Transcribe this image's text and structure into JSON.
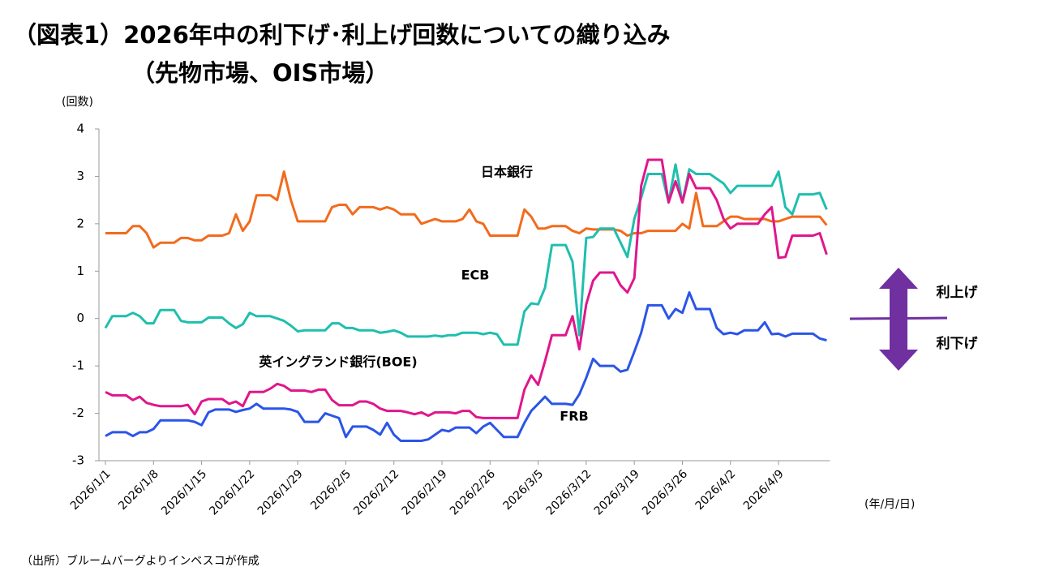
{
  "chart_data": {
    "type": "line",
    "title": "（図表1）2026年中の利下げ･利上げ回数についての織り込み",
    "subtitle": "（先物市場、OIS市場）",
    "y_label": "(回数)",
    "x_label": "(年/月/日)",
    "source": "（出所）ブルームバーグよりインベスコが作成",
    "annotations": [
      "利上げ",
      "利下げ"
    ],
    "annotation_color": "#7030a0",
    "negative_tick_color": "#e00000",
    "ylim": [
      -3,
      4
    ],
    "yticks": [
      4,
      3,
      2,
      1,
      0,
      -1,
      -2,
      -3
    ],
    "x": [
      "2026/1/1",
      "2026/1/2",
      "2026/1/3",
      "2026/1/4",
      "2026/1/5",
      "2026/1/6",
      "2026/1/7",
      "2026/1/8",
      "2026/1/9",
      "2026/1/10",
      "2026/1/11",
      "2026/1/12",
      "2026/1/13",
      "2026/1/14",
      "2026/1/15",
      "2026/1/16",
      "2026/1/17",
      "2026/1/18",
      "2026/1/19",
      "2026/1/20",
      "2026/1/21",
      "2026/1/22",
      "2026/1/23",
      "2026/1/24",
      "2026/1/25",
      "2026/1/26",
      "2026/1/27",
      "2026/1/28",
      "2026/1/29",
      "2026/1/30",
      "2026/1/31",
      "2026/2/1",
      "2026/2/2",
      "2026/2/3",
      "2026/2/4",
      "2026/2/5",
      "2026/2/6",
      "2026/2/7",
      "2026/2/8",
      "2026/2/9",
      "2026/2/10",
      "2026/2/11",
      "2026/2/12",
      "2026/2/13",
      "2026/2/14",
      "2026/2/15",
      "2026/2/16",
      "2026/2/17",
      "2026/2/18",
      "2026/2/19",
      "2026/2/20",
      "2026/2/21",
      "2026/2/22",
      "2026/2/23",
      "2026/2/24",
      "2026/2/25",
      "2026/2/26",
      "2026/2/27",
      "2026/2/28",
      "2026/3/1",
      "2026/3/2",
      "2026/3/3",
      "2026/3/4",
      "2026/3/5",
      "2026/3/6",
      "2026/3/7",
      "2026/3/8",
      "2026/3/9",
      "2026/3/10",
      "2026/3/11",
      "2026/3/12",
      "2026/3/13",
      "2026/3/14",
      "2026/3/15",
      "2026/3/16",
      "2026/3/17",
      "2026/3/18",
      "2026/3/19",
      "2026/3/20",
      "2026/3/21",
      "2026/3/22",
      "2026/3/23",
      "2026/3/24",
      "2026/3/25",
      "2026/3/26",
      "2026/3/27",
      "2026/3/28",
      "2026/3/29",
      "2026/3/30",
      "2026/3/31",
      "2026/4/1",
      "2026/4/2",
      "2026/4/3",
      "2026/4/4",
      "2026/4/5",
      "2026/4/6",
      "2026/4/7",
      "2026/4/8",
      "2026/4/9",
      "2026/4/10",
      "2026/4/11",
      "2026/4/12",
      "2026/4/13",
      "2026/4/14",
      "2026/4/15",
      "2026/4/16"
    ],
    "xticks": [
      "2026/1/1",
      "2026/1/8",
      "2026/1/15",
      "2026/1/22",
      "2026/1/29",
      "2026/2/5",
      "2026/2/12",
      "2026/2/19",
      "2026/2/26",
      "2026/3/5",
      "2026/3/12",
      "2026/3/19",
      "2026/3/26",
      "2026/4/2",
      "2026/4/9"
    ],
    "series": [
      {
        "name": "日本銀行",
        "color": "#f26b1d",
        "values": [
          1.8,
          1.8,
          1.8,
          1.8,
          1.95,
          1.95,
          1.8,
          1.5,
          1.6,
          1.6,
          1.6,
          1.7,
          1.7,
          1.65,
          1.65,
          1.75,
          1.75,
          1.75,
          1.8,
          2.2,
          1.85,
          2.05,
          2.6,
          2.6,
          2.6,
          2.5,
          3.1,
          2.5,
          2.05,
          2.05,
          2.05,
          2.05,
          2.05,
          2.35,
          2.4,
          2.4,
          2.2,
          2.35,
          2.35,
          2.35,
          2.3,
          2.35,
          2.3,
          2.2,
          2.2,
          2.2,
          2.0,
          2.05,
          2.1,
          2.05,
          2.05,
          2.05,
          2.1,
          2.3,
          2.05,
          2.0,
          1.75,
          1.75,
          1.75,
          1.75,
          1.75,
          2.3,
          2.15,
          1.9,
          1.9,
          1.95,
          1.95,
          1.95,
          1.85,
          1.8,
          1.9,
          1.88,
          1.88,
          1.88,
          1.88,
          1.85,
          1.75,
          1.8,
          1.8,
          1.85,
          1.85,
          1.85,
          1.85,
          1.85,
          2.0,
          1.9,
          2.65,
          1.95,
          1.95,
          1.95,
          2.05,
          2.15,
          2.15,
          2.1,
          2.1,
          2.1,
          2.1,
          2.05,
          2.05,
          2.1,
          2.15,
          2.15,
          2.15,
          2.15,
          2.15,
          1.97
        ]
      },
      {
        "name": "ECB",
        "color": "#1fbfae",
        "values": [
          -0.2,
          0.05,
          0.05,
          0.05,
          0.12,
          0.05,
          -0.1,
          -0.1,
          0.18,
          0.18,
          0.18,
          -0.05,
          -0.08,
          -0.08,
          -0.08,
          0.02,
          0.02,
          0.02,
          -0.1,
          -0.2,
          -0.12,
          0.12,
          0.05,
          0.05,
          0.05,
          0,
          -0.05,
          -0.15,
          -0.27,
          -0.25,
          -0.25,
          -0.25,
          -0.25,
          -0.1,
          -0.1,
          -0.2,
          -0.2,
          -0.25,
          -0.25,
          -0.25,
          -0.3,
          -0.28,
          -0.25,
          -0.3,
          -0.38,
          -0.38,
          -0.38,
          -0.38,
          -0.36,
          -0.38,
          -0.35,
          -0.35,
          -0.3,
          -0.3,
          -0.3,
          -0.33,
          -0.3,
          -0.33,
          -0.55,
          -0.55,
          -0.55,
          0.15,
          0.32,
          0.3,
          0.65,
          1.55,
          1.55,
          1.55,
          1.2,
          -0.35,
          1.7,
          1.72,
          1.9,
          1.9,
          1.9,
          1.6,
          1.3,
          2.1,
          2.55,
          3.05,
          3.05,
          3.05,
          2.45,
          3.25,
          2.45,
          3.15,
          3.05,
          3.05,
          3.05,
          2.95,
          2.85,
          2.65,
          2.8,
          2.8,
          2.8,
          2.8,
          2.8,
          2.8,
          3.1,
          2.35,
          2.2,
          2.62,
          2.62,
          2.62,
          2.65,
          2.3
        ]
      },
      {
        "name": "英イングランド銀行(BOE)",
        "color": "#e0168c",
        "values": [
          -1.55,
          -1.62,
          -1.62,
          -1.62,
          -1.72,
          -1.65,
          -1.78,
          -1.82,
          -1.85,
          -1.85,
          -1.85,
          -1.85,
          -1.82,
          -2.02,
          -1.75,
          -1.7,
          -1.7,
          -1.7,
          -1.8,
          -1.75,
          -1.85,
          -1.55,
          -1.55,
          -1.55,
          -1.48,
          -1.38,
          -1.42,
          -1.52,
          -1.52,
          -1.52,
          -1.55,
          -1.5,
          -1.5,
          -1.72,
          -1.83,
          -1.83,
          -1.83,
          -1.75,
          -1.75,
          -1.8,
          -1.9,
          -1.95,
          -1.95,
          -1.95,
          -1.98,
          -2.02,
          -1.98,
          -2.05,
          -1.98,
          -1.98,
          -1.98,
          -2.0,
          -1.95,
          -1.95,
          -2.08,
          -2.1,
          -2.1,
          -2.1,
          -2.1,
          -2.1,
          -2.1,
          -1.5,
          -1.2,
          -1.4,
          -0.9,
          -0.35,
          -0.35,
          -0.35,
          0.05,
          -0.65,
          0.3,
          0.8,
          0.97,
          0.97,
          0.97,
          0.7,
          0.55,
          0.85,
          2.8,
          3.35,
          3.35,
          3.35,
          2.45,
          2.9,
          2.45,
          3.05,
          2.75,
          2.75,
          2.75,
          2.5,
          2.1,
          1.9,
          2.0,
          2.0,
          2.0,
          2.0,
          2.2,
          2.35,
          1.28,
          1.3,
          1.75,
          1.75,
          1.75,
          1.75,
          1.8,
          1.35
        ]
      },
      {
        "name": "FRB",
        "color": "#2a55e8",
        "values": [
          -2.48,
          -2.4,
          -2.4,
          -2.4,
          -2.48,
          -2.4,
          -2.4,
          -2.33,
          -2.15,
          -2.15,
          -2.15,
          -2.15,
          -2.15,
          -2.18,
          -2.25,
          -1.98,
          -1.92,
          -1.92,
          -1.92,
          -1.97,
          -1.93,
          -1.9,
          -1.8,
          -1.9,
          -1.9,
          -1.9,
          -1.9,
          -1.92,
          -1.97,
          -2.18,
          -2.18,
          -2.18,
          -2.0,
          -2.05,
          -2.1,
          -2.5,
          -2.28,
          -2.28,
          -2.28,
          -2.35,
          -2.45,
          -2.2,
          -2.45,
          -2.58,
          -2.58,
          -2.58,
          -2.58,
          -2.55,
          -2.45,
          -2.35,
          -2.38,
          -2.3,
          -2.3,
          -2.3,
          -2.42,
          -2.28,
          -2.2,
          -2.35,
          -2.5,
          -2.5,
          -2.5,
          -2.2,
          -1.95,
          -1.8,
          -1.65,
          -1.8,
          -1.8,
          -1.8,
          -1.82,
          -1.6,
          -1.25,
          -0.85,
          -1.0,
          -1.0,
          -1.0,
          -1.12,
          -1.08,
          -0.7,
          -0.3,
          0.28,
          0.28,
          0.28,
          0.0,
          0.2,
          0.12,
          0.55,
          0.2,
          0.2,
          0.2,
          -0.2,
          -0.33,
          -0.3,
          -0.33,
          -0.25,
          -0.25,
          -0.25,
          -0.08,
          -0.33,
          -0.32,
          -0.38,
          -0.32,
          -0.32,
          -0.32,
          -0.32,
          -0.42,
          -0.46
        ]
      }
    ]
  }
}
